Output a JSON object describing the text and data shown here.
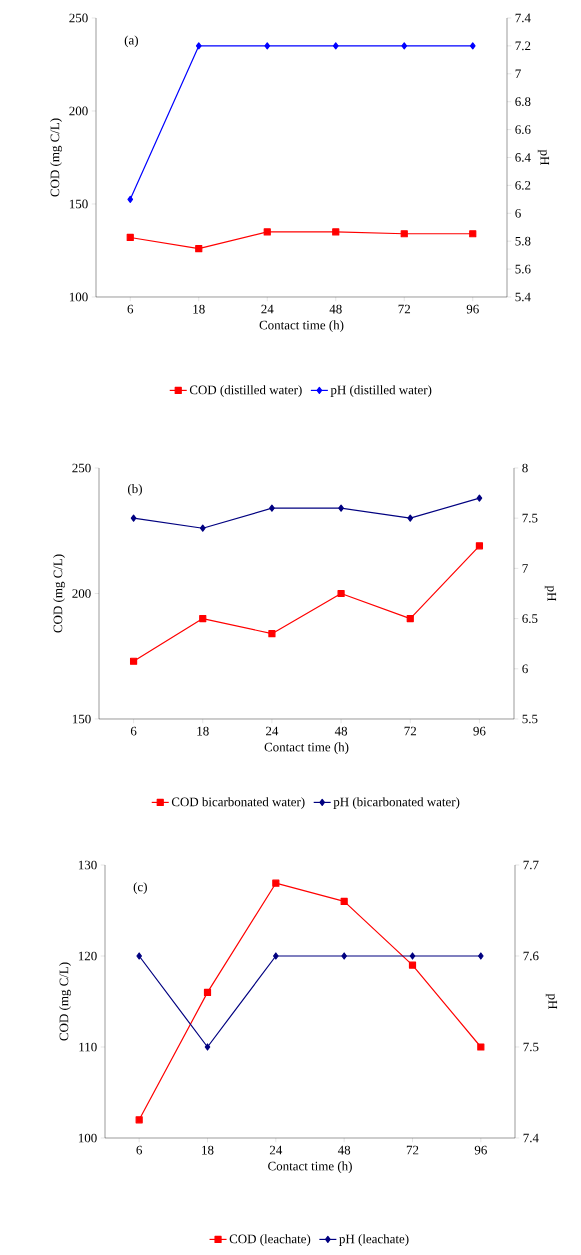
{
  "chart_data": [
    {
      "type": "line",
      "annotations": [
        "(a)"
      ],
      "categories": [
        "6",
        "18",
        "24",
        "48",
        "72",
        "96"
      ],
      "xlabel": "Contact time (h)",
      "ylabel": "COD (mg C/L)",
      "y2label": "pH",
      "ylim": [
        100,
        250
      ],
      "yticks": [
        100,
        150,
        200,
        250
      ],
      "y2lim": [
        5.4,
        7.4
      ],
      "y2ticks": [
        5.4,
        5.6,
        5.8,
        6,
        6.2,
        6.4,
        6.6,
        6.8,
        7,
        7.2,
        7.4
      ],
      "legend": "bottom",
      "grid": false,
      "series": [
        {
          "name": "COD (distilled water)",
          "color": "#ff0000",
          "marker": "square",
          "values": [
            132,
            126,
            135,
            135,
            134,
            134
          ]
        },
        {
          "name": "pH (distilled water)",
          "color": "#0000ff",
          "marker": "diamond",
          "axis": "y2",
          "values": [
            6.1,
            7.2,
            7.2,
            7.2,
            7.2,
            7.2
          ]
        }
      ]
    },
    {
      "type": "line",
      "annotations": [
        "(b)"
      ],
      "categories": [
        "6",
        "18",
        "24",
        "48",
        "72",
        "96"
      ],
      "xlabel": "Contact time (h)",
      "ylabel": "COD (mg C/L)",
      "y2label": "pH",
      "ylim": [
        150,
        250
      ],
      "yticks": [
        150,
        200,
        250
      ],
      "y2lim": [
        5.5,
        8
      ],
      "y2ticks": [
        5.5,
        6,
        6.5,
        7,
        7.5,
        8
      ],
      "legend": "bottom",
      "grid": false,
      "series": [
        {
          "name": "COD bicarbonated water)",
          "color": "#ff0000",
          "marker": "square",
          "values": [
            173,
            190,
            184,
            200,
            190,
            219
          ]
        },
        {
          "name": "pH (bicarbonated water)",
          "color": "#000080",
          "marker": "diamond",
          "axis": "y2",
          "values": [
            7.5,
            7.4,
            7.6,
            7.6,
            7.5,
            7.7
          ]
        }
      ]
    },
    {
      "type": "line",
      "annotations": [
        "(c)"
      ],
      "categories": [
        "6",
        "18",
        "24",
        "48",
        "72",
        "96"
      ],
      "xlabel": "Contact time (h)",
      "ylabel": "COD (mg C/L)",
      "y2label": "pH",
      "ylim": [
        100,
        130
      ],
      "yticks": [
        100,
        110,
        120,
        130
      ],
      "y2lim": [
        7.4,
        7.7
      ],
      "y2ticks": [
        7.4,
        7.5,
        7.6,
        7.7
      ],
      "legend": "bottom",
      "grid": false,
      "series": [
        {
          "name": "COD (leachate)",
          "color": "#ff0000",
          "marker": "square",
          "values": [
            102,
            116,
            128,
            126,
            119,
            110
          ]
        },
        {
          "name": "pH (leachate)",
          "color": "#000080",
          "marker": "diamond",
          "axis": "y2",
          "values": [
            7.6,
            7.5,
            7.6,
            7.6,
            7.6,
            7.6
          ]
        }
      ]
    }
  ]
}
